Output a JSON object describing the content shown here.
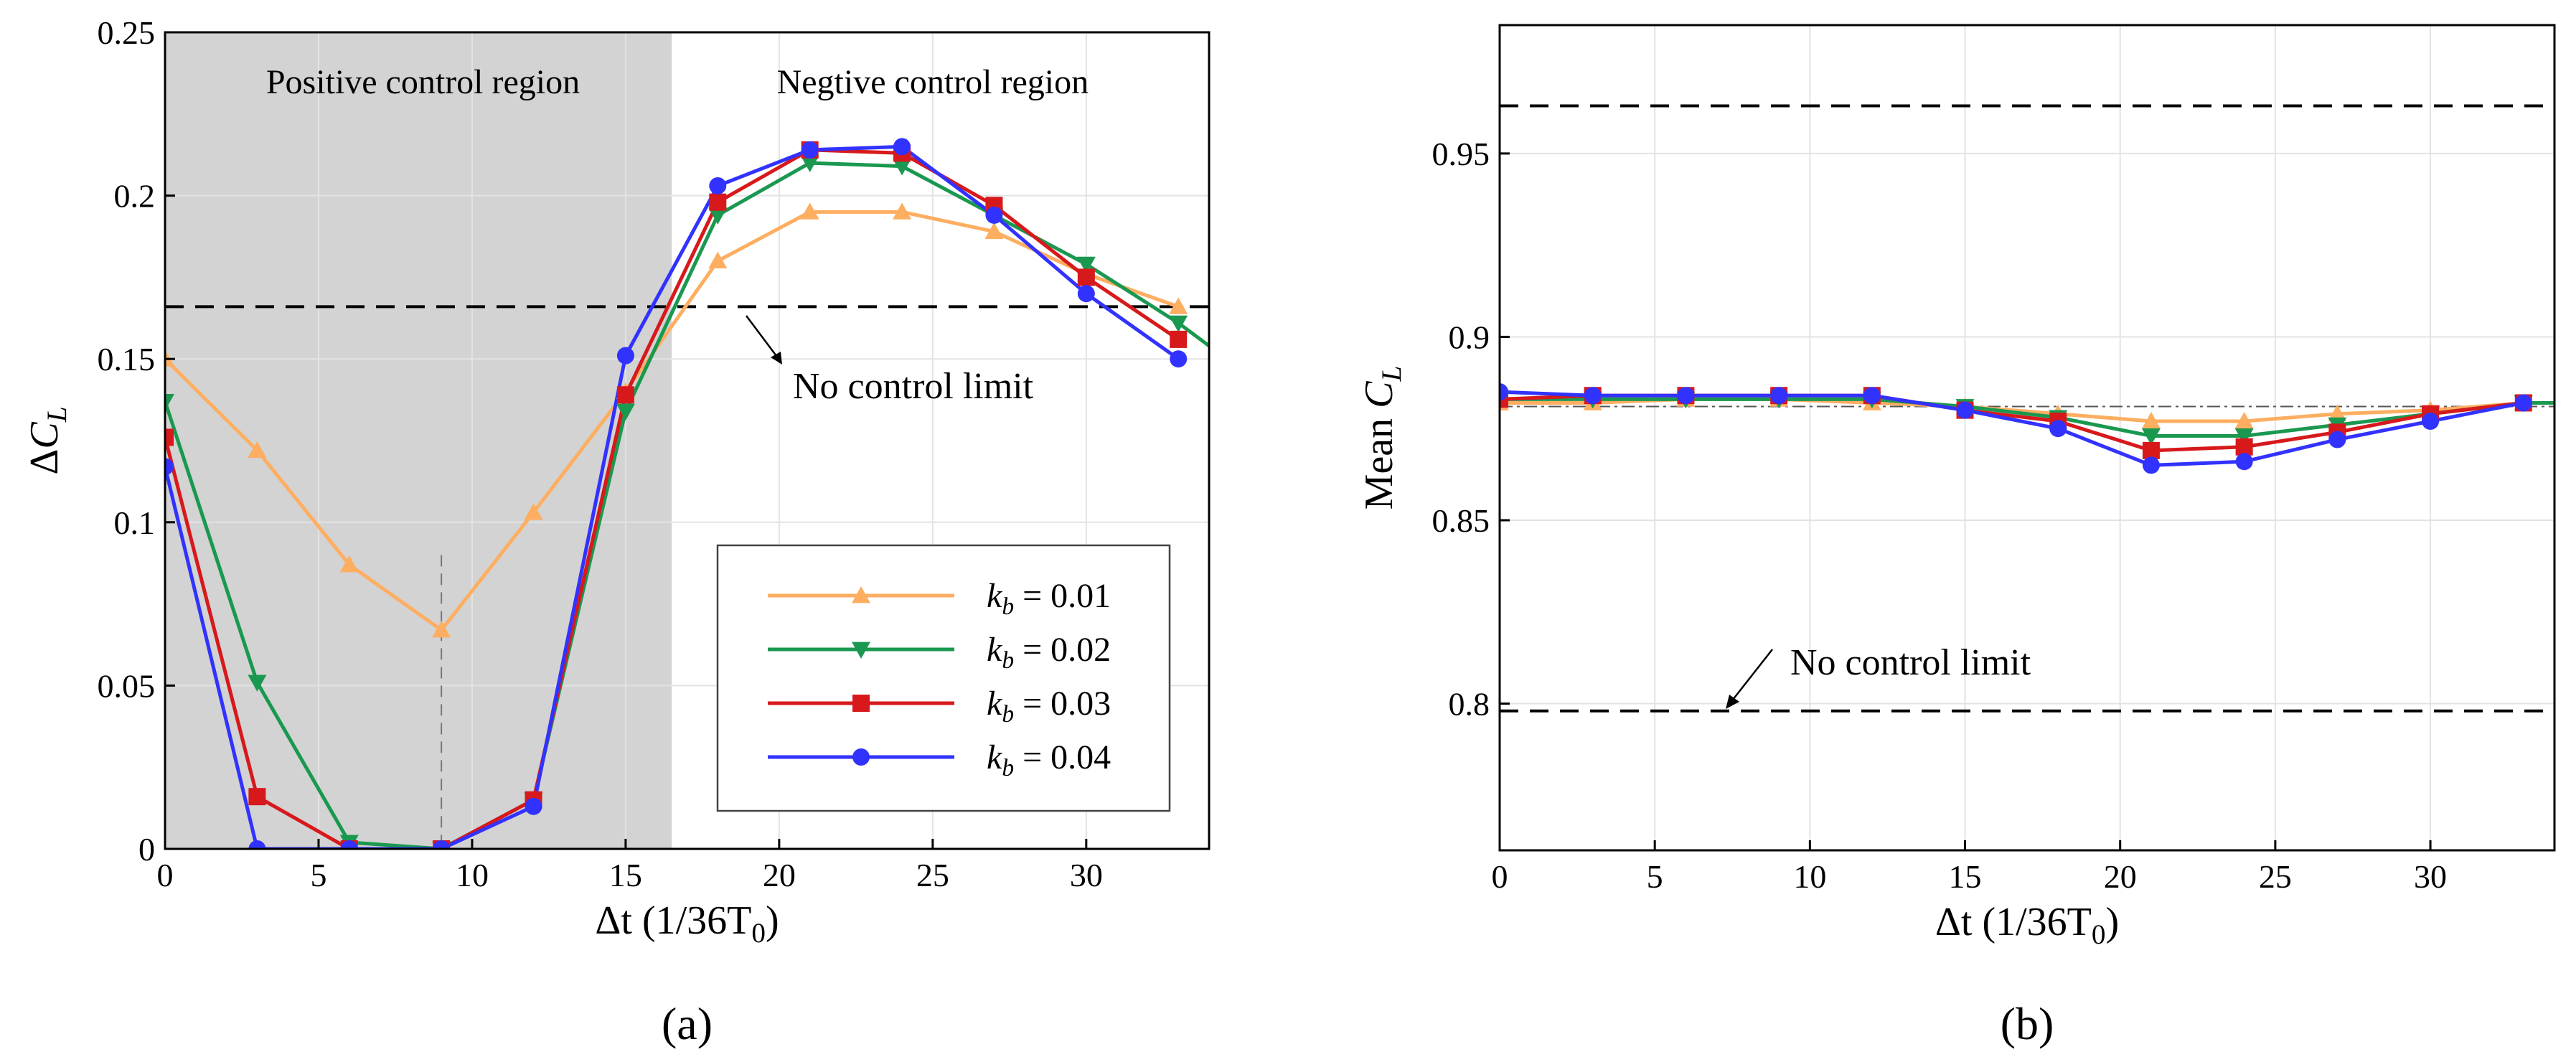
{
  "chart_data": [
    {
      "type": "line",
      "panel_label": "(a)",
      "xlabel": "Δt (1/36T",
      "xlabel_sub": "0",
      "xlabel_tail": ")",
      "ylabel": "ΔC",
      "ylabel_sub": "L",
      "xlim": [
        0,
        34
      ],
      "ylim": [
        0,
        0.25
      ],
      "xticks": [
        0,
        5,
        10,
        15,
        20,
        25,
        30
      ],
      "xtick_labels": [
        "0",
        "5",
        "10",
        "15",
        "20",
        "25",
        "30"
      ],
      "yticks": [
        0,
        0.05,
        0.1,
        0.15,
        0.2,
        0.25
      ],
      "ytick_labels": [
        "0",
        "0.05",
        "0.1",
        "0.15",
        "0.2",
        "0.25"
      ],
      "grid": true,
      "shaded_region": {
        "x": [
          0,
          16.5
        ],
        "label": "Positive control region",
        "color": "#d3d3d3"
      },
      "unshaded_label": "Negtive control region",
      "limit_line": {
        "y": 0.166,
        "label": "No control  limit"
      },
      "vertical_marker_x": 9,
      "x": [
        0,
        3,
        6,
        9,
        12,
        15,
        18,
        21,
        24,
        27,
        30,
        33
      ],
      "series": [
        {
          "name": "0.01",
          "color": "#fdae61",
          "marker": "triangle-up",
          "values": [
            0.15,
            0.122,
            0.087,
            0.067,
            0.103,
            0.14,
            0.18,
            0.195,
            0.195,
            0.189,
            0.176,
            0.166
          ]
        },
        {
          "name": "0.02",
          "color": "#1a9850",
          "marker": "triangle-down",
          "values": [
            0.137,
            0.051,
            0.002,
            0.0,
            0.015,
            0.134,
            0.194,
            0.21,
            0.209,
            0.194,
            0.179,
            0.161
          ]
        },
        {
          "name": "0.03",
          "color": "#d7191c",
          "marker": "square",
          "values": [
            0.126,
            0.016,
            0.0,
            0.0,
            0.015,
            0.139,
            0.198,
            0.214,
            0.213,
            0.197,
            0.175,
            0.156
          ]
        },
        {
          "name": "0.04",
          "color": "#3232ff",
          "marker": "circle",
          "values": [
            0.117,
            0.0,
            0.0,
            0.0,
            0.013,
            0.151,
            0.203,
            0.214,
            0.215,
            0.194,
            0.17,
            0.15
          ]
        }
      ],
      "series_tail": [
        {
          "from_x": 33,
          "to_x": 34,
          "series": "0.02",
          "to_y": 0.154
        }
      ],
      "legend_prefix": "k",
      "legend_prefix_sub": "b",
      "legend_eq": " = ",
      "legend_position": "bottom-right"
    },
    {
      "type": "line",
      "panel_label": "(b)",
      "xlabel": "Δt (1/36T",
      "xlabel_sub": "0",
      "xlabel_tail": ")",
      "ylabel": "Mean C",
      "ylabel_sub": "L",
      "xlim": [
        0,
        34
      ],
      "ylim": [
        0.76,
        0.985
      ],
      "xticks": [
        0,
        5,
        10,
        15,
        20,
        25,
        30
      ],
      "xtick_labels": [
        "0",
        "5",
        "10",
        "15",
        "20",
        "25",
        "30"
      ],
      "yticks": [
        0.8,
        0.85,
        0.9,
        0.95
      ],
      "ytick_labels": [
        "0.8",
        "0.85",
        "0.9",
        "0.95"
      ],
      "grid": true,
      "limit_lines": [
        0.963,
        0.798
      ],
      "limit_label": "No control limit",
      "reference_line_y": 0.881,
      "x": [
        0,
        3,
        6,
        9,
        12,
        15,
        18,
        21,
        24,
        27,
        30,
        33
      ],
      "series": [
        {
          "name": "0.01",
          "color": "#fdae61",
          "marker": "triangle-up",
          "values": [
            0.882,
            0.882,
            0.883,
            0.883,
            0.882,
            0.881,
            0.879,
            0.877,
            0.877,
            0.879,
            0.88,
            0.882
          ]
        },
        {
          "name": "0.02",
          "color": "#1a9850",
          "marker": "triangle-down",
          "values": [
            0.883,
            0.883,
            0.883,
            0.883,
            0.883,
            0.881,
            0.878,
            0.873,
            0.873,
            0.876,
            0.879,
            0.882
          ]
        },
        {
          "name": "0.03",
          "color": "#d7191c",
          "marker": "square",
          "values": [
            0.883,
            0.884,
            0.884,
            0.884,
            0.884,
            0.88,
            0.877,
            0.869,
            0.87,
            0.874,
            0.879,
            0.882
          ]
        },
        {
          "name": "0.04",
          "color": "#3232ff",
          "marker": "circle",
          "values": [
            0.885,
            0.884,
            0.884,
            0.884,
            0.884,
            0.88,
            0.875,
            0.865,
            0.866,
            0.872,
            0.877,
            0.882
          ]
        }
      ],
      "series_tail": [
        {
          "from_x": 33,
          "to_x": 34,
          "series": "0.02",
          "to_y": 0.882
        }
      ]
    }
  ]
}
